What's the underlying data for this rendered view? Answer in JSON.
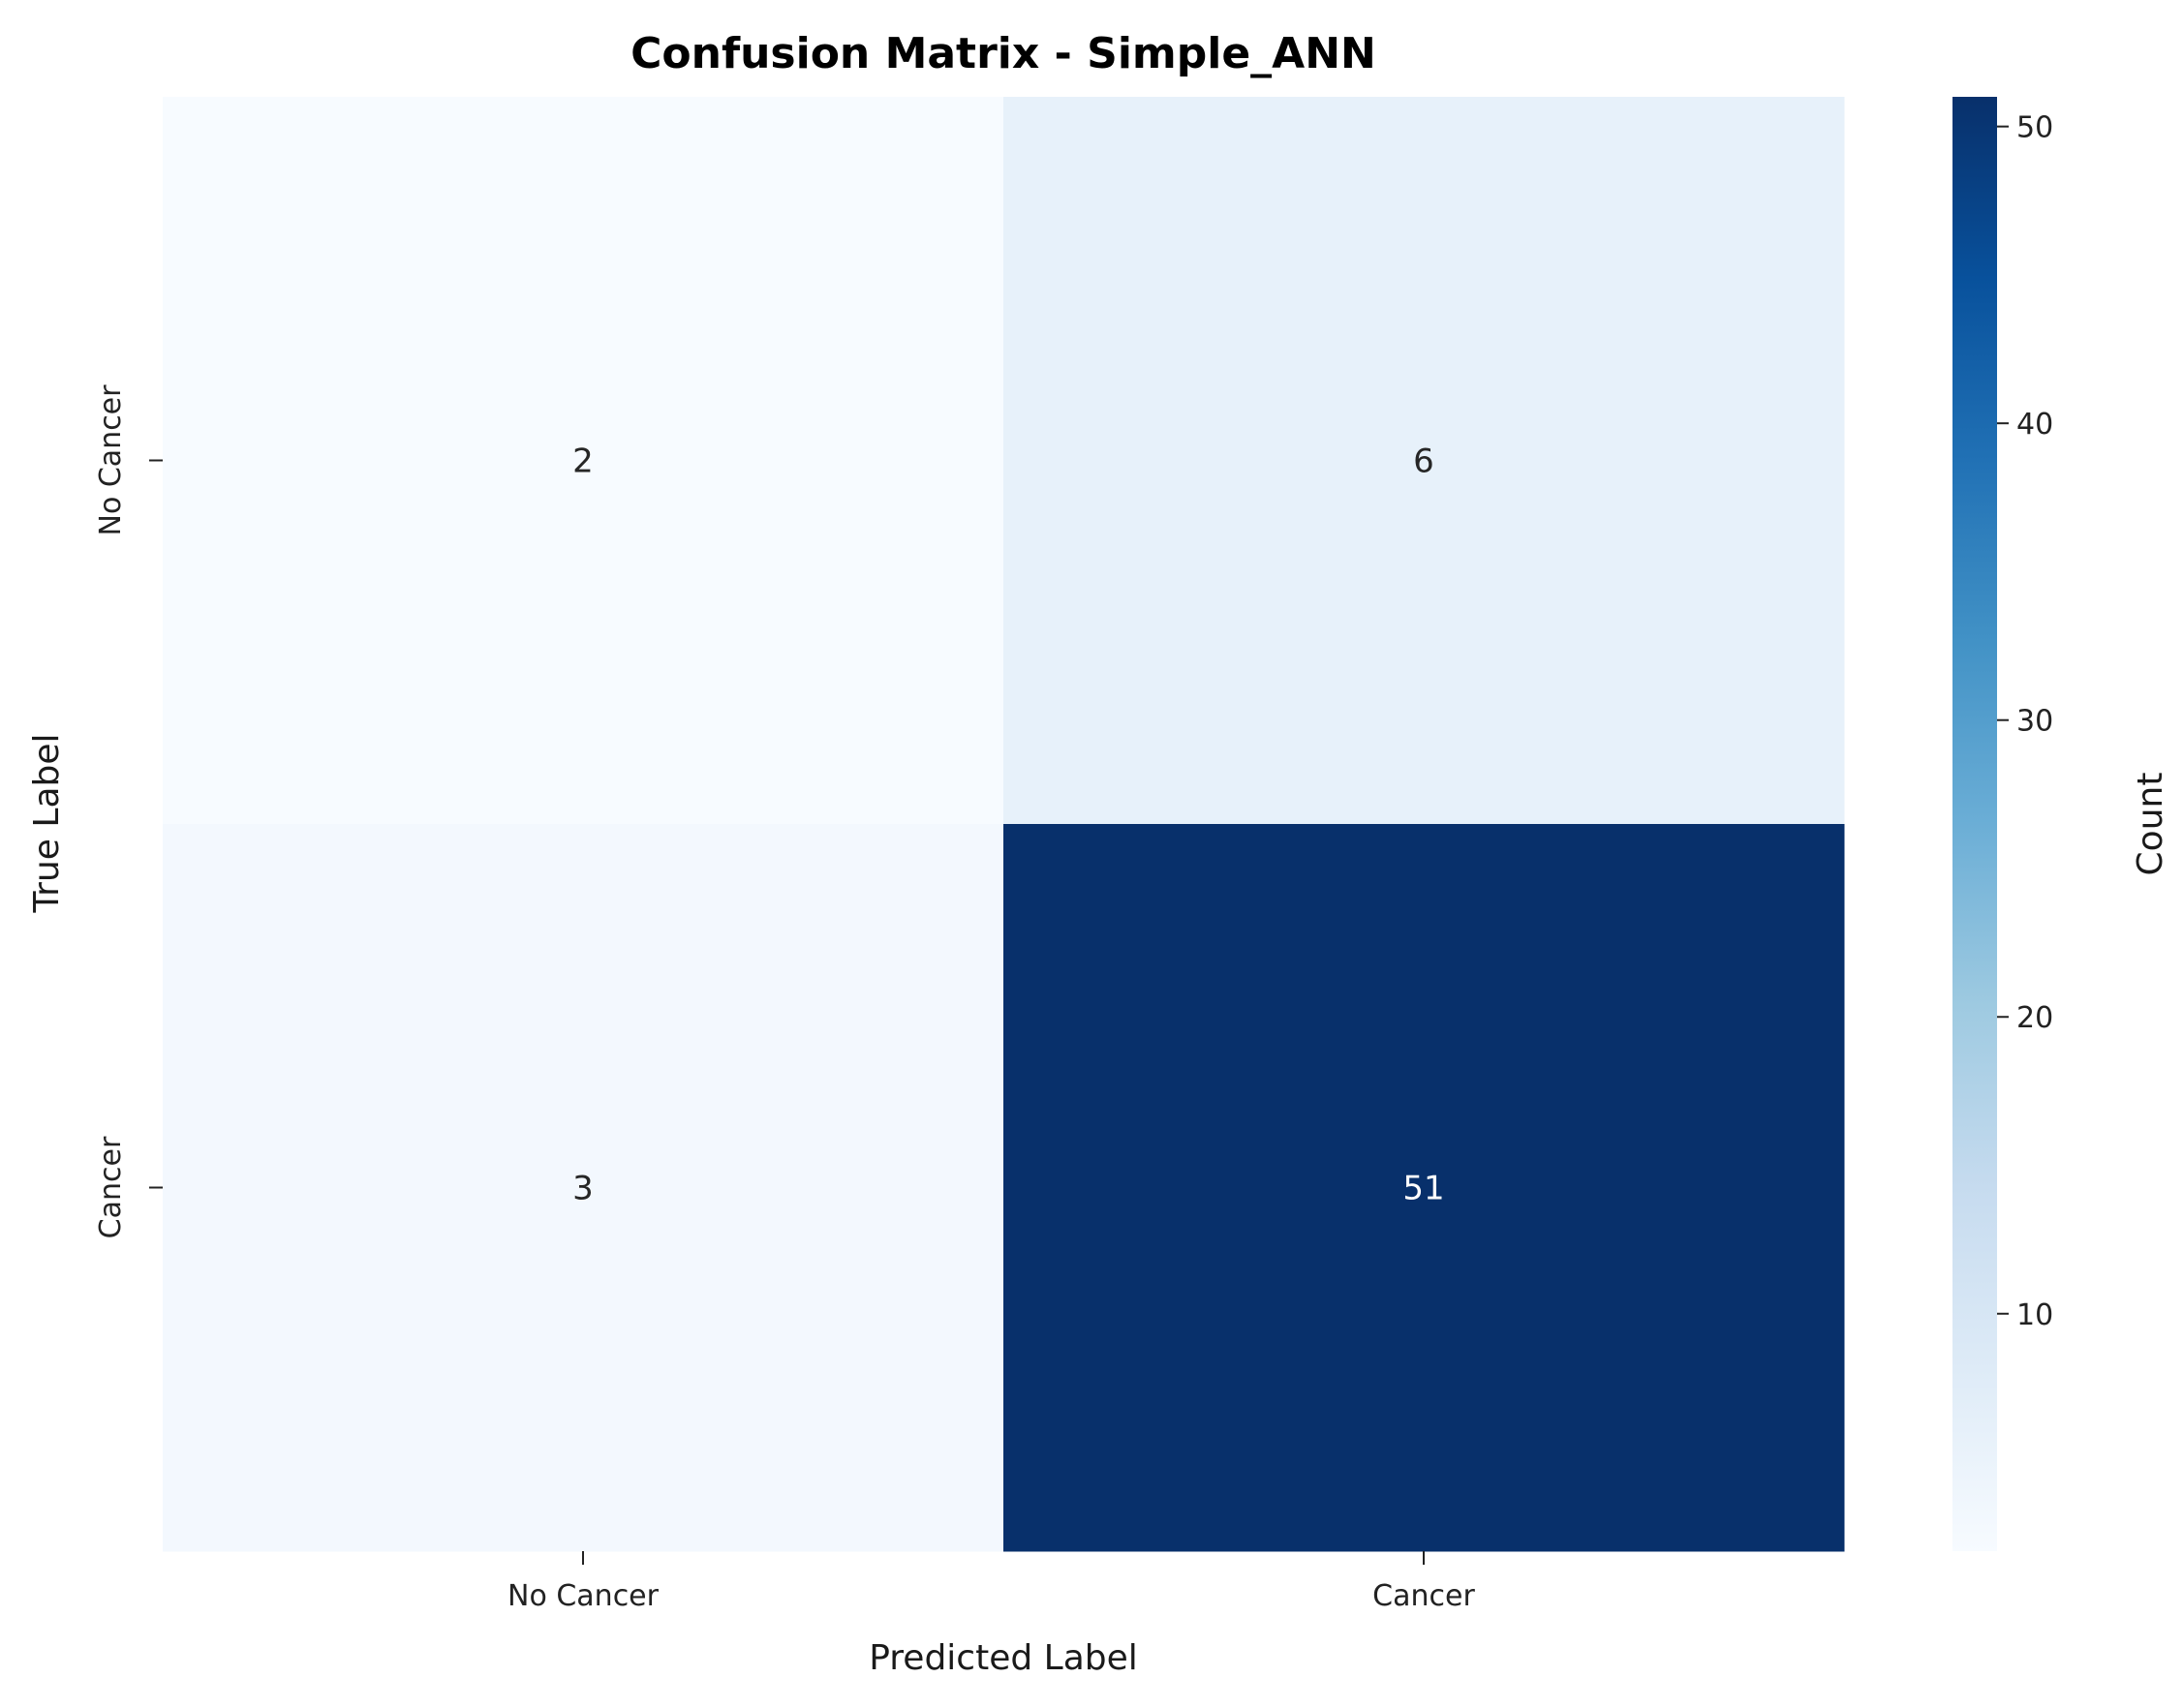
{
  "chart_data": {
    "type": "heatmap",
    "title": "Confusion Matrix - Simple_ANN",
    "xlabel": "Predicted Label",
    "ylabel": "True Label",
    "x_categories": [
      "No Cancer",
      "Cancer"
    ],
    "y_categories": [
      "No Cancer",
      "Cancer"
    ],
    "matrix": [
      [
        2,
        6
      ],
      [
        3,
        51
      ]
    ],
    "colorbar": {
      "label": "Count",
      "range": [
        2,
        51
      ],
      "ticks": [
        10,
        20,
        30,
        40,
        50
      ],
      "colormap": "Blues"
    },
    "text_colors": {
      "dark": "#262626",
      "light": "#ffffff"
    }
  }
}
